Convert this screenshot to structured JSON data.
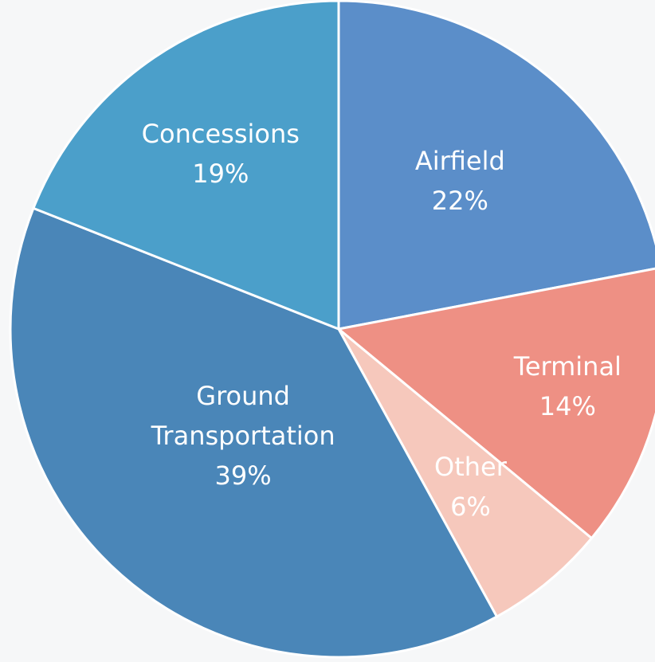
{
  "chart_data": {
    "type": "pie",
    "title": "",
    "start_angle_deg": 0,
    "direction": "clockwise",
    "legend": "none",
    "slices": [
      {
        "label": "Airfield",
        "value": 22,
        "value_label": "22%",
        "color": "#5b8ec9"
      },
      {
        "label": "Terminal",
        "value": 14,
        "value_label": "14%",
        "color": "#ee9084"
      },
      {
        "label": "Other",
        "value": 6,
        "value_label": "6%",
        "color": "#f6c8bc"
      },
      {
        "label": "Ground Transportation",
        "label_lines": [
          "Ground",
          "Transportation"
        ],
        "value": 39,
        "value_label": "39%",
        "color": "#4a86b8"
      },
      {
        "label": "Concessions",
        "value": 19,
        "value_label": "19%",
        "color": "#4b9fca"
      }
    ]
  }
}
